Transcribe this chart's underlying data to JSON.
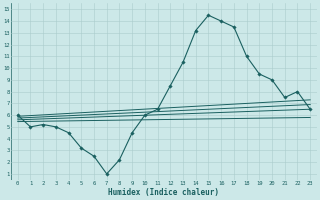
{
  "xlabel": "Humidex (Indice chaleur)",
  "bg_color": "#cce8e8",
  "grid_color": "#aacccc",
  "line_color": "#1a6060",
  "xlim": [
    -0.5,
    23.5
  ],
  "ylim": [
    0.5,
    15.5
  ],
  "xticks": [
    0,
    1,
    2,
    3,
    4,
    5,
    6,
    7,
    8,
    9,
    10,
    11,
    12,
    13,
    14,
    15,
    16,
    17,
    18,
    19,
    20,
    21,
    22,
    23
  ],
  "yticks": [
    1,
    2,
    3,
    4,
    5,
    6,
    7,
    8,
    9,
    10,
    11,
    12,
    13,
    14,
    15
  ],
  "main_x": [
    0,
    1,
    2,
    3,
    4,
    5,
    6,
    7,
    8,
    9,
    10,
    11,
    12,
    13,
    14,
    15,
    16,
    17,
    18,
    19,
    20,
    21,
    22,
    23
  ],
  "main_y": [
    6.0,
    5.0,
    5.2,
    5.0,
    4.5,
    3.2,
    2.5,
    1.0,
    2.2,
    4.5,
    6.0,
    6.5,
    8.5,
    10.5,
    13.2,
    14.5,
    14.0,
    13.5,
    11.0,
    9.5,
    9.0,
    7.5,
    8.0,
    6.5
  ],
  "trend_lines": [
    [
      [
        0,
        23
      ],
      [
        5.9,
        7.3
      ]
    ],
    [
      [
        0,
        23
      ],
      [
        5.75,
        6.9
      ]
    ],
    [
      [
        0,
        23
      ],
      [
        5.6,
        6.5
      ]
    ],
    [
      [
        0,
        23
      ],
      [
        5.45,
        5.8
      ]
    ]
  ]
}
